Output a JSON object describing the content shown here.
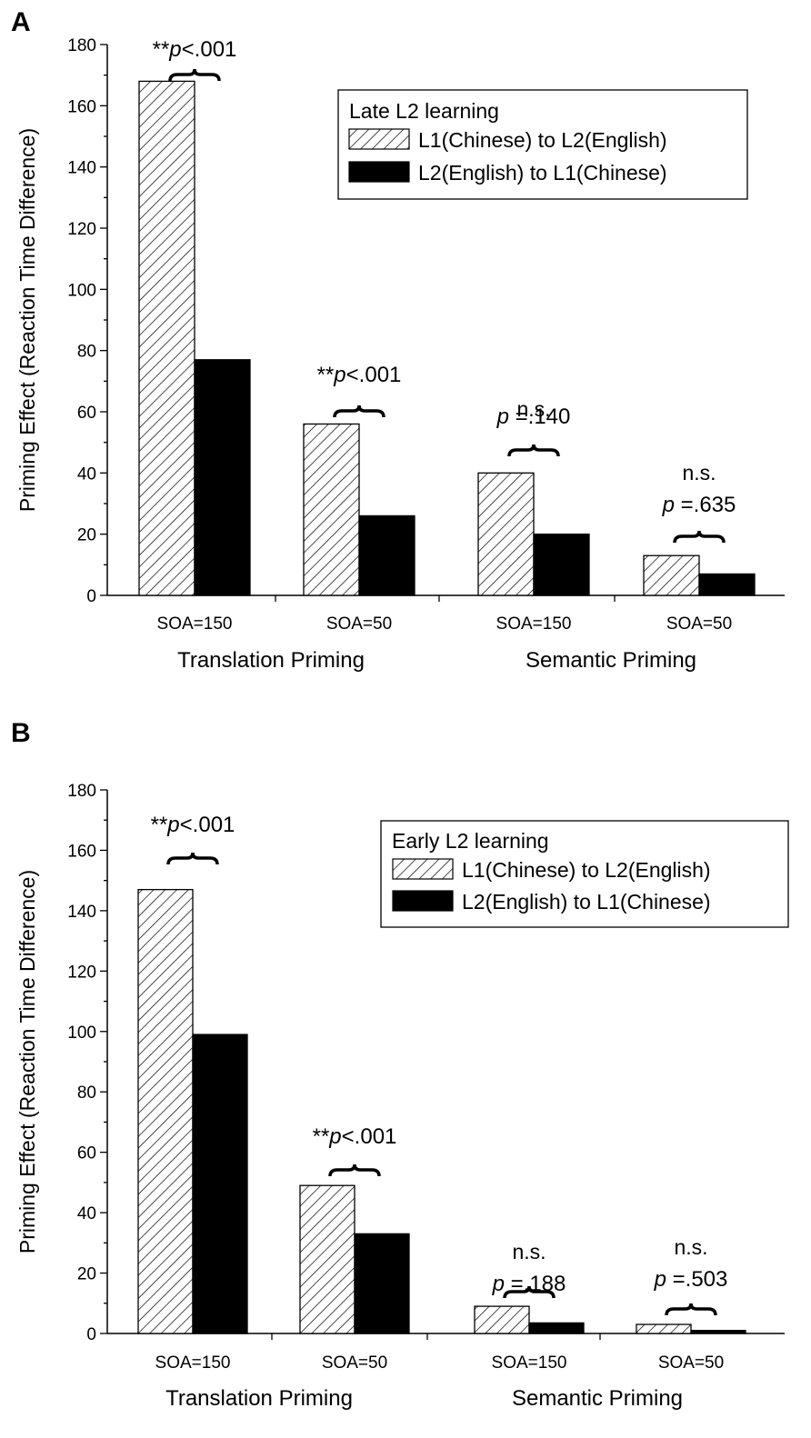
{
  "chart_data": [
    {
      "type": "bar",
      "panel_label": "A",
      "ylabel": "Priming Effect (Reaction Time Difference)",
      "ylim": [
        0,
        180
      ],
      "yticks": [
        "0",
        "20",
        "40",
        "60",
        "80",
        "100",
        "120",
        "140",
        "160",
        "180"
      ],
      "categories": [
        "SOA=150",
        "SOA=50",
        "SOA=150",
        "SOA=50"
      ],
      "groups": [
        {
          "label": "Translation Priming",
          "categories": [
            0,
            1
          ]
        },
        {
          "label": "Semantic Priming",
          "categories": [
            2,
            3
          ]
        }
      ],
      "legend": {
        "title": "Late L2 learning",
        "position": "top-right",
        "entries": [
          "L1(Chinese) to L2(English)",
          "L2(English) to L1(Chinese)"
        ]
      },
      "series": [
        {
          "name": "L1(Chinese) to L2(English)",
          "pattern": "hatched",
          "values": [
            168,
            56,
            40,
            13
          ]
        },
        {
          "name": "L2(English) to L1(Chinese)",
          "pattern": "solid",
          "values": [
            77,
            26,
            20,
            7
          ]
        }
      ],
      "annotations": [
        {
          "stars": "**",
          "p": "p",
          "rest": "<.001",
          "line1": ""
        },
        {
          "stars": "**",
          "p": "p",
          "rest": "<.001",
          "line1": ""
        },
        {
          "stars": "",
          "p": "p",
          "rest": " =.140",
          "line1": "n.s."
        },
        {
          "stars": "",
          "p": "p",
          "rest": " =.635",
          "line1": "n.s."
        }
      ]
    },
    {
      "type": "bar",
      "panel_label": "B",
      "ylabel": "Priming Effect (Reaction Time Difference)",
      "ylim": [
        0,
        180
      ],
      "yticks": [
        "0",
        "20",
        "40",
        "60",
        "80",
        "100",
        "120",
        "140",
        "160",
        "180"
      ],
      "categories": [
        "SOA=150",
        "SOA=50",
        "SOA=150",
        "SOA=50"
      ],
      "groups": [
        {
          "label": "Translation Priming",
          "categories": [
            0,
            1
          ]
        },
        {
          "label": "Semantic Priming",
          "categories": [
            2,
            3
          ]
        }
      ],
      "legend": {
        "title": "Early L2 learning",
        "position": "top-right",
        "entries": [
          "L1(Chinese) to L2(English)",
          "L2(English) to L1(Chinese)"
        ]
      },
      "series": [
        {
          "name": "L1(Chinese) to L2(English)",
          "pattern": "hatched",
          "values": [
            147,
            49,
            9,
            3
          ]
        },
        {
          "name": "L2(English) to L1(Chinese)",
          "pattern": "solid",
          "values": [
            99,
            33,
            3.5,
            1
          ]
        }
      ],
      "annotations": [
        {
          "stars": "**",
          "p": "p",
          "rest": "<.001",
          "line1": ""
        },
        {
          "stars": "**",
          "p": "p",
          "rest": "<.001",
          "line1": ""
        },
        {
          "stars": "",
          "p": "p",
          "rest": " =.188",
          "line1": "n.s."
        },
        {
          "stars": "",
          "p": "p",
          "rest": " =.503",
          "line1": "n.s."
        }
      ]
    }
  ]
}
